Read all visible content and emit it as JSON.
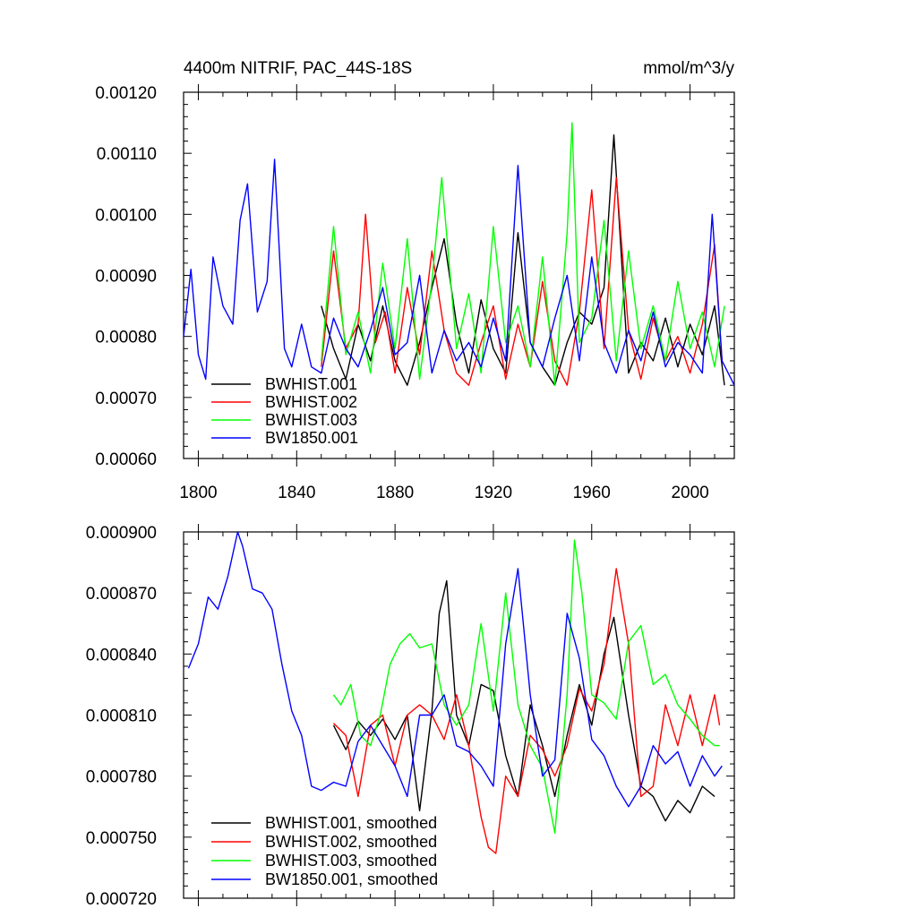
{
  "chart_data": [
    {
      "type": "line",
      "title_left": "4400m NITRIF, PAC_44S-18S",
      "title_right": "mmol/m^3/y",
      "xlabel": "",
      "ylabel": "",
      "xlim": [
        1794,
        2018
      ],
      "ylim": [
        0.0006,
        0.0012
      ],
      "xticks": [
        1800,
        1840,
        1880,
        1920,
        1960,
        2000
      ],
      "xtick_labels": [
        "1800",
        "1840",
        "1880",
        "1920",
        "1960",
        "2000"
      ],
      "yticks": [
        0.0006,
        0.0007,
        0.0008,
        0.0009,
        0.001,
        0.0011,
        0.0012
      ],
      "ytick_labels": [
        "0.00060",
        "0.00070",
        "0.00080",
        "0.00090",
        "0.00100",
        "0.00110",
        "0.00120"
      ],
      "legend_position": "bottom-left",
      "series": [
        {
          "name": "BWHIST.001",
          "color": "#000000",
          "x": [
            1850,
            1855,
            1860,
            1865,
            1870,
            1875,
            1880,
            1885,
            1890,
            1895,
            1900,
            1905,
            1910,
            1915,
            1920,
            1925,
            1930,
            1935,
            1940,
            1945,
            1950,
            1955,
            1960,
            1965,
            1969,
            1975,
            1980,
            1985,
            1990,
            1995,
            2000,
            2005,
            2010,
            2014
          ],
          "y": [
            0.00085,
            0.00078,
            0.00073,
            0.00082,
            0.00076,
            0.00085,
            0.00076,
            0.00072,
            0.00079,
            0.00088,
            0.00096,
            0.00082,
            0.00074,
            0.00086,
            0.00078,
            0.00074,
            0.00097,
            0.00079,
            0.00075,
            0.00072,
            0.00079,
            0.00084,
            0.00082,
            0.00088,
            0.00113,
            0.00074,
            0.00079,
            0.00076,
            0.00083,
            0.00075,
            0.00082,
            0.00077,
            0.00085,
            0.00072
          ]
        },
        {
          "name": "BWHIST.002",
          "color": "#ff0000",
          "x": [
            1850,
            1855,
            1860,
            1865,
            1868,
            1872,
            1876,
            1880,
            1885,
            1890,
            1895,
            1900,
            1905,
            1910,
            1915,
            1920,
            1925,
            1930,
            1935,
            1940,
            1945,
            1950,
            1955,
            1960,
            1965,
            1970,
            1975,
            1980,
            1985,
            1990,
            1995,
            2000,
            2005,
            2010,
            2013
          ],
          "y": [
            0.00075,
            0.00094,
            0.00078,
            0.00082,
            0.001,
            0.00079,
            0.00084,
            0.00074,
            0.00088,
            0.00077,
            0.00094,
            0.00081,
            0.00074,
            0.00072,
            0.00079,
            0.00085,
            0.00073,
            0.00082,
            0.00075,
            0.00089,
            0.00076,
            0.00072,
            0.00084,
            0.00104,
            0.00078,
            0.00106,
            0.00081,
            0.00073,
            0.00083,
            0.00076,
            0.0008,
            0.00074,
            0.00082,
            0.00095,
            0.00076
          ]
        },
        {
          "name": "BWHIST.003",
          "color": "#00ff00",
          "x": [
            1850,
            1855,
            1860,
            1865,
            1870,
            1875,
            1880,
            1885,
            1890,
            1895,
            1899,
            1905,
            1910,
            1915,
            1920,
            1925,
            1930,
            1935,
            1940,
            1945,
            1950,
            1952,
            1955,
            1960,
            1965,
            1970,
            1975,
            1980,
            1985,
            1990,
            1995,
            2000,
            2005,
            2010,
            2014
          ],
          "y": [
            0.00076,
            0.00098,
            0.00077,
            0.00084,
            0.00074,
            0.00092,
            0.00078,
            0.00096,
            0.00073,
            0.00089,
            0.00106,
            0.00078,
            0.00087,
            0.00074,
            0.00098,
            0.00079,
            0.00085,
            0.00075,
            0.00093,
            0.00072,
            0.00097,
            0.00115,
            0.00079,
            0.00083,
            0.00099,
            0.00076,
            0.00094,
            0.00078,
            0.00085,
            0.00076,
            0.00089,
            0.00078,
            0.00084,
            0.00075,
            0.00085
          ]
        },
        {
          "name": "BW1850.001",
          "color": "#0000ff",
          "x": [
            1794,
            1797,
            1800,
            1803,
            1806,
            1810,
            1814,
            1817,
            1820,
            1824,
            1828,
            1831,
            1835,
            1838,
            1842,
            1846,
            1850,
            1855,
            1860,
            1865,
            1870,
            1875,
            1880,
            1885,
            1890,
            1895,
            1900,
            1905,
            1910,
            1915,
            1920,
            1925,
            1930,
            1935,
            1940,
            1945,
            1950,
            1955,
            1960,
            1965,
            1970,
            1975,
            1980,
            1985,
            1990,
            1995,
            2000,
            2005,
            2009,
            2013,
            2018
          ],
          "y": [
            0.0008,
            0.00091,
            0.00077,
            0.00073,
            0.00093,
            0.00085,
            0.00082,
            0.00099,
            0.00105,
            0.00084,
            0.00089,
            0.00109,
            0.00078,
            0.00075,
            0.00082,
            0.00075,
            0.00074,
            0.00083,
            0.00078,
            0.00075,
            0.00081,
            0.00088,
            0.00077,
            0.00079,
            0.0009,
            0.00074,
            0.00081,
            0.00076,
            0.00079,
            0.00075,
            0.00083,
            0.00076,
            0.00108,
            0.00079,
            0.00075,
            0.00083,
            0.0009,
            0.00076,
            0.00093,
            0.00079,
            0.00074,
            0.00081,
            0.00076,
            0.00084,
            0.00075,
            0.00079,
            0.00077,
            0.00074,
            0.001,
            0.00076,
            0.00072
          ]
        }
      ]
    },
    {
      "type": "line",
      "title_left": "",
      "title_right": "",
      "xlabel": "",
      "ylabel": "",
      "xlim": [
        1794,
        2018
      ],
      "ylim": [
        0.00072,
        0.0009
      ],
      "xticks": [
        1800,
        1840,
        1880,
        1920,
        1960,
        2000
      ],
      "xtick_labels": [],
      "yticks": [
        0.00072,
        0.00075,
        0.00078,
        0.00081,
        0.00084,
        0.00087,
        0.0009
      ],
      "ytick_labels": [
        "0.000720",
        "0.000750",
        "0.000780",
        "0.000810",
        "0.000840",
        "0.000870",
        "0.000900"
      ],
      "legend_position": "bottom-left",
      "series": [
        {
          "name": "BWHIST.001, smoothed",
          "color": "#000000",
          "x": [
            1855,
            1860,
            1865,
            1870,
            1875,
            1880,
            1885,
            1890,
            1895,
            1898,
            1901,
            1905,
            1910,
            1915,
            1920,
            1925,
            1930,
            1935,
            1940,
            1945,
            1950,
            1955,
            1960,
            1965,
            1969,
            1975,
            1980,
            1985,
            1990,
            1995,
            2000,
            2005,
            2010
          ],
          "y": [
            0.000805,
            0.000793,
            0.000807,
            0.0008,
            0.000808,
            0.000798,
            0.00081,
            0.000763,
            0.000812,
            0.00086,
            0.000876,
            0.00081,
            0.000795,
            0.000825,
            0.000822,
            0.00079,
            0.00077,
            0.000815,
            0.000795,
            0.00077,
            0.0008,
            0.000825,
            0.000805,
            0.00084,
            0.000858,
            0.00081,
            0.000775,
            0.00077,
            0.000758,
            0.000768,
            0.000762,
            0.000775,
            0.00077
          ]
        },
        {
          "name": "BWHIST.002, smoothed",
          "color": "#ff0000",
          "x": [
            1855,
            1860,
            1865,
            1870,
            1875,
            1880,
            1885,
            1890,
            1895,
            1900,
            1905,
            1910,
            1915,
            1918,
            1921,
            1925,
            1930,
            1935,
            1940,
            1945,
            1950,
            1955,
            1960,
            1965,
            1970,
            1975,
            1980,
            1985,
            1990,
            1995,
            2000,
            2005,
            2010,
            2012
          ],
          "y": [
            0.000806,
            0.0008,
            0.00077,
            0.000805,
            0.00081,
            0.000785,
            0.00081,
            0.000815,
            0.00081,
            0.000798,
            0.00082,
            0.000795,
            0.00076,
            0.000745,
            0.000742,
            0.00078,
            0.00077,
            0.0008,
            0.000793,
            0.00078,
            0.000795,
            0.000823,
            0.000812,
            0.000835,
            0.000882,
            0.000845,
            0.00077,
            0.000775,
            0.000815,
            0.000795,
            0.00082,
            0.000795,
            0.00082,
            0.000805
          ]
        },
        {
          "name": "BWHIST.003, smoothed",
          "color": "#00ff00",
          "x": [
            1855,
            1858,
            1862,
            1866,
            1870,
            1874,
            1878,
            1882,
            1886,
            1890,
            1895,
            1900,
            1905,
            1910,
            1915,
            1920,
            1925,
            1930,
            1935,
            1940,
            1945,
            1950,
            1953,
            1956,
            1960,
            1965,
            1970,
            1975,
            1980,
            1985,
            1990,
            1995,
            2000,
            2005,
            2010,
            2012
          ],
          "y": [
            0.00082,
            0.000815,
            0.000825,
            0.0008,
            0.000795,
            0.00081,
            0.000835,
            0.000845,
            0.00085,
            0.000843,
            0.000845,
            0.000815,
            0.000805,
            0.000815,
            0.000855,
            0.000812,
            0.00087,
            0.000815,
            0.000795,
            0.000784,
            0.000752,
            0.00082,
            0.000896,
            0.00087,
            0.00082,
            0.000816,
            0.000808,
            0.000846,
            0.000854,
            0.000825,
            0.00083,
            0.000815,
            0.000808,
            0.0008,
            0.000795,
            0.000795
          ]
        },
        {
          "name": "BW1850.001, smoothed",
          "color": "#0000ff",
          "x": [
            1796,
            1800,
            1804,
            1808,
            1812,
            1816,
            1818,
            1822,
            1826,
            1830,
            1834,
            1838,
            1842,
            1846,
            1850,
            1855,
            1860,
            1865,
            1870,
            1875,
            1880,
            1885,
            1890,
            1895,
            1900,
            1905,
            1910,
            1915,
            1920,
            1925,
            1930,
            1935,
            1940,
            1945,
            1950,
            1955,
            1960,
            1965,
            1970,
            1975,
            1980,
            1985,
            1990,
            1995,
            2000,
            2005,
            2010,
            2013
          ],
          "y": [
            0.000833,
            0.000845,
            0.000868,
            0.000862,
            0.000878,
            0.0009,
            0.000893,
            0.000872,
            0.00087,
            0.000862,
            0.000835,
            0.000812,
            0.0008,
            0.000775,
            0.000773,
            0.000777,
            0.000775,
            0.000797,
            0.000805,
            0.000795,
            0.000785,
            0.00077,
            0.00081,
            0.00081,
            0.00082,
            0.000795,
            0.000792,
            0.000785,
            0.000775,
            0.000845,
            0.000882,
            0.00082,
            0.00078,
            0.000788,
            0.00086,
            0.000838,
            0.000798,
            0.00079,
            0.000775,
            0.000765,
            0.000775,
            0.000795,
            0.000786,
            0.000792,
            0.000775,
            0.00079,
            0.00078,
            0.000785
          ]
        }
      ]
    }
  ]
}
